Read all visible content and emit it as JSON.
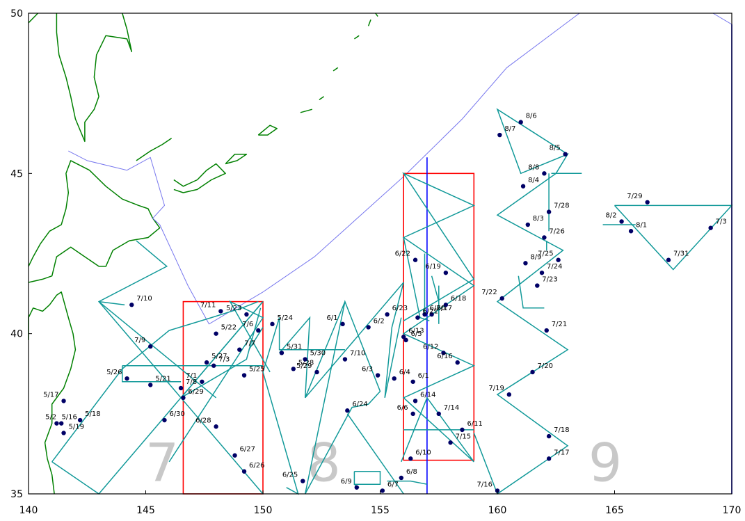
{
  "axes": {
    "x_ticks": [
      "140",
      "145",
      "150",
      "155",
      "160",
      "165",
      "170"
    ],
    "y_ticks": [
      "35",
      "40",
      "45",
      "50"
    ],
    "xlim": [
      140,
      170
    ],
    "ylim": [
      35,
      50
    ]
  },
  "colors": {
    "coast": "#008000",
    "boundary": "#7777ee",
    "track": "#119999",
    "station": "#000066",
    "box": "#ff0000",
    "meridian": "#0000ff",
    "area_number": "#c8c8c8"
  },
  "area_numbers": [
    {
      "text": "7",
      "lon": 145.7,
      "lat": 35.4
    },
    {
      "text": "8",
      "lon": 152.6,
      "lat": 35.4
    },
    {
      "text": "9",
      "lon": 164.6,
      "lat": 35.4
    }
  ],
  "boxes": [
    {
      "lon": [
        146.6,
        150.0
      ],
      "lat": [
        35.0,
        41.0
      ]
    },
    {
      "lon": [
        156.0,
        159.0
      ],
      "lat": [
        36.05,
        45.0
      ]
    }
  ],
  "meridians": [
    {
      "lon": 157.0,
      "lat": [
        35.0,
        45.5
      ]
    },
    {
      "lon": 170.0,
      "lat": [
        35.0,
        49.65
      ]
    }
  ],
  "boundary_lines": [
    [
      [
        141.7,
        45.7
      ],
      [
        142.5,
        45.4
      ],
      [
        144.2,
        45.1
      ],
      [
        145.2,
        45.5
      ],
      [
        145.8,
        44.0
      ],
      [
        145.3,
        43.6
      ],
      [
        145.6,
        43.4
      ]
    ],
    [
      [
        145.6,
        43.4
      ],
      [
        146.8,
        41.5
      ],
      [
        147.7,
        40.3
      ],
      [
        150.0,
        41.3
      ],
      [
        152.2,
        42.4
      ],
      [
        156.0,
        44.9
      ],
      [
        158.5,
        46.7
      ],
      [
        160.4,
        48.3
      ],
      [
        163.5,
        50.0
      ]
    ],
    [
      [
        169.2,
        50.0
      ],
      [
        170.0,
        49.65
      ]
    ]
  ],
  "tracks": [
    [
      [
        141.0,
        36.0
      ],
      [
        144.0,
        38.9
      ],
      [
        146.0,
        40.1
      ],
      [
        147.8,
        40.5
      ],
      [
        149.1,
        40.8
      ],
      [
        149.8,
        41.0
      ]
    ],
    [
      [
        141.0,
        36.0
      ],
      [
        143.0,
        35.0
      ],
      [
        150.0,
        41.0
      ],
      [
        146.5,
        38.0
      ],
      [
        143.0,
        41.0
      ],
      [
        145.9,
        42.1
      ],
      [
        144.6,
        42.9
      ]
    ],
    [
      [
        143.0,
        41.0
      ],
      [
        148.0,
        38.0
      ]
    ],
    [
      [
        144.0,
        39.0
      ],
      [
        150.0,
        39.0
      ]
    ],
    [
      [
        144.0,
        39.0
      ],
      [
        144.0,
        38.5
      ],
      [
        146.5,
        38.5
      ]
    ],
    [
      [
        146.5,
        38.0
      ],
      [
        150.0,
        35.0
      ]
    ],
    [
      [
        143.0,
        41.0
      ],
      [
        144.1,
        40.9
      ]
    ],
    [
      [
        146.0,
        36.0
      ],
      [
        150.0,
        40.5
      ],
      [
        148.6,
        41.0
      ],
      [
        150.3,
        38.8
      ]
    ],
    [
      [
        146.5,
        38.0
      ],
      [
        149.3,
        39.2
      ],
      [
        149.9,
        40.8
      ]
    ],
    [
      [
        149.4,
        39.5
      ],
      [
        150.0,
        40.2
      ]
    ],
    [
      [
        146.5,
        38.0
      ],
      [
        150.0,
        41.0
      ]
    ],
    [
      [
        150.0,
        38.8
      ],
      [
        151.5,
        35.0
      ],
      [
        151.0,
        35.2
      ]
    ],
    [
      [
        150.0,
        38.8
      ],
      [
        150.7,
        40.5
      ],
      [
        150.7,
        39.5
      ],
      [
        153.5,
        39.5
      ]
    ],
    [
      [
        150.7,
        39.4
      ],
      [
        152.0,
        40.5
      ],
      [
        151.8,
        38.0
      ],
      [
        153.5,
        41.0
      ]
    ],
    [
      [
        151.8,
        38.0
      ],
      [
        156.0,
        41.6
      ],
      [
        155.5,
        40.2
      ],
      [
        155.2,
        38.0
      ],
      [
        155.9,
        40.5
      ]
    ],
    [
      [
        151.8,
        35.0
      ],
      [
        153.5,
        41.0
      ],
      [
        155.0,
        38.2
      ],
      [
        154.5,
        37.8
      ],
      [
        153.8,
        37.7
      ],
      [
        151.8,
        35.0
      ]
    ],
    [
      [
        153.6,
        37.5
      ],
      [
        156.0,
        35.0
      ]
    ],
    [
      [
        153.9,
        35.7
      ],
      [
        155.0,
        35.7
      ],
      [
        155.0,
        35.3
      ],
      [
        153.9,
        35.3
      ],
      [
        153.9,
        35.7
      ]
    ],
    [
      [
        153.9,
        35.3
      ],
      [
        154.1,
        35.2
      ]
    ],
    [
      [
        155.3,
        35.4
      ],
      [
        156.3,
        35.4
      ],
      [
        157.0,
        35.3
      ]
    ],
    [
      [
        155.9,
        36.0
      ],
      [
        157.0,
        38.0
      ],
      [
        159.0,
        36.0
      ],
      [
        156.0,
        38.0
      ],
      [
        159.0,
        39.0
      ],
      [
        156.0,
        40.0
      ],
      [
        159.0,
        41.5
      ],
      [
        156.0,
        43.0
      ],
      [
        159.0,
        44.0
      ],
      [
        156.0,
        45.0
      ],
      [
        159.0,
        41.7
      ],
      [
        156.0,
        40.4
      ]
    ],
    [
      [
        156.0,
        37.0
      ],
      [
        159.0,
        37.0
      ]
    ],
    [
      [
        156.0,
        43.0
      ],
      [
        156.7,
        40.5
      ],
      [
        157.1,
        40.4
      ]
    ],
    [
      [
        156.9,
        42.5
      ],
      [
        156.9,
        40.6
      ]
    ],
    [
      [
        157.2,
        41.8
      ],
      [
        157.5,
        41.0
      ]
    ],
    [
      [
        157.5,
        41.5
      ],
      [
        157.5,
        40.3
      ]
    ],
    [
      [
        159.0,
        36.9
      ],
      [
        160.0,
        35.0
      ],
      [
        163.0,
        36.5
      ],
      [
        160.0,
        38.1
      ],
      [
        163.0,
        39.5
      ],
      [
        160.0,
        41.0
      ],
      [
        162.8,
        42.6
      ],
      [
        160.0,
        43.7
      ],
      [
        162.5,
        45.0
      ],
      [
        163.0,
        45.6
      ],
      [
        161.0,
        45.0
      ],
      [
        160.0,
        47.0
      ],
      [
        163.0,
        45.6
      ]
    ],
    [
      [
        162.2,
        45.0
      ],
      [
        162.2,
        43.2
      ]
    ],
    [
      [
        162.3,
        45.0
      ],
      [
        163.6,
        45.0
      ]
    ],
    [
      [
        160.9,
        41.8
      ],
      [
        161.1,
        40.8
      ],
      [
        162.0,
        40.8
      ]
    ],
    [
      [
        162.1,
        42.6
      ],
      [
        162.1,
        42.9
      ]
    ],
    [
      [
        165.0,
        44.0
      ],
      [
        170.0,
        44.0
      ],
      [
        167.5,
        42.0
      ],
      [
        165.0,
        44.0
      ]
    ],
    [
      [
        164.5,
        43.4
      ],
      [
        165.9,
        43.4
      ]
    ]
  ],
  "stations": [
    {
      "lon": 141.2,
      "lat": 37.2,
      "label": "5/16"
    },
    {
      "lon": 141.5,
      "lat": 37.9,
      "label": "5/17"
    },
    {
      "lon": 142.2,
      "lat": 37.3,
      "label": "5/18"
    },
    {
      "lon": 141.5,
      "lat": 36.9,
      "label": "5/19"
    },
    {
      "lon": 141.4,
      "lat": 37.2,
      "label": "5/2"
    },
    {
      "lon": 145.2,
      "lat": 38.4,
      "label": "5/21"
    },
    {
      "lon": 148.0,
      "lat": 40.0,
      "label": "5/22"
    },
    {
      "lon": 149.3,
      "lat": 40.6,
      "label": "5/23"
    },
    {
      "lon": 150.4,
      "lat": 40.3,
      "label": "5/24"
    },
    {
      "lon": 149.2,
      "lat": 38.7,
      "label": "5/25"
    },
    {
      "lon": 144.2,
      "lat": 38.6,
      "label": "5/26"
    },
    {
      "lon": 147.6,
      "lat": 39.1,
      "label": "5/27"
    },
    {
      "lon": 151.3,
      "lat": 38.9,
      "label": "5/28"
    },
    {
      "lon": 152.3,
      "lat": 38.8,
      "label": "5/29"
    },
    {
      "lon": 151.8,
      "lat": 39.2,
      "label": "5/30"
    },
    {
      "lon": 150.8,
      "lat": 39.4,
      "label": "5/31"
    },
    {
      "lon": 153.4,
      "lat": 40.3,
      "label": "6/1"
    },
    {
      "lon": 156.4,
      "lat": 38.5,
      "label": "6/1"
    },
    {
      "lon": 154.5,
      "lat": 40.2,
      "label": "6/2"
    },
    {
      "lon": 154.9,
      "lat": 38.7,
      "label": "6/3"
    },
    {
      "lon": 155.6,
      "lat": 38.6,
      "label": "6/4"
    },
    {
      "lon": 156.1,
      "lat": 39.8,
      "label": "6/5"
    },
    {
      "lon": 156.4,
      "lat": 37.5,
      "label": "6/6"
    },
    {
      "lon": 155.1,
      "lat": 35.1,
      "label": "6/7"
    },
    {
      "lon": 155.9,
      "lat": 35.5,
      "label": "6/8"
    },
    {
      "lon": 154.0,
      "lat": 35.2,
      "label": "6/9"
    },
    {
      "lon": 156.3,
      "lat": 36.1,
      "label": "6/10"
    },
    {
      "lon": 158.5,
      "lat": 37.0,
      "label": "6/11"
    },
    {
      "lon": 157.7,
      "lat": 39.4,
      "label": "6/12"
    },
    {
      "lon": 156.0,
      "lat": 39.9,
      "label": "6/13"
    },
    {
      "lon": 156.5,
      "lat": 37.9,
      "label": "6/14"
    },
    {
      "lon": 158.3,
      "lat": 39.1,
      "label": "6/16"
    },
    {
      "lon": 157.2,
      "lat": 40.6,
      "label": "6/17"
    },
    {
      "lon": 157.8,
      "lat": 40.9,
      "label": "6/18"
    },
    {
      "lon": 157.8,
      "lat": 41.9,
      "label": "6/19"
    },
    {
      "lon": 156.9,
      "lat": 40.6,
      "label": "6/20"
    },
    {
      "lon": 156.6,
      "lat": 40.5,
      "label": "6/21"
    },
    {
      "lon": 156.5,
      "lat": 42.3,
      "label": "6/22"
    },
    {
      "lon": 155.3,
      "lat": 40.6,
      "label": "6/23"
    },
    {
      "lon": 153.6,
      "lat": 37.6,
      "label": "6/24"
    },
    {
      "lon": 151.7,
      "lat": 35.4,
      "label": "6/25"
    },
    {
      "lon": 149.2,
      "lat": 35.7,
      "label": "6/26"
    },
    {
      "lon": 148.8,
      "lat": 36.2,
      "label": "6/27"
    },
    {
      "lon": 148.0,
      "lat": 37.1,
      "label": "6/28"
    },
    {
      "lon": 146.6,
      "lat": 38.0,
      "label": "6/29"
    },
    {
      "lon": 145.8,
      "lat": 37.3,
      "label": "6/30"
    },
    {
      "lon": 147.4,
      "lat": 38.5,
      "label": "7/1"
    },
    {
      "lon": 147.9,
      "lat": 39.0,
      "label": "7/3"
    },
    {
      "lon": 169.1,
      "lat": 43.3,
      "label": "7/3"
    },
    {
      "lon": 149.8,
      "lat": 40.1,
      "label": "7/6"
    },
    {
      "lon": 149.0,
      "lat": 39.5,
      "label": "7/7"
    },
    {
      "lon": 146.5,
      "lat": 38.3,
      "label": "7/8"
    },
    {
      "lon": 145.2,
      "lat": 39.6,
      "label": "7/9"
    },
    {
      "lon": 144.4,
      "lat": 40.9,
      "label": "7/10"
    },
    {
      "lon": 153.5,
      "lat": 39.2,
      "label": "7/10"
    },
    {
      "lon": 148.2,
      "lat": 40.7,
      "label": "7/11"
    },
    {
      "lon": 157.5,
      "lat": 37.5,
      "label": "7/14"
    },
    {
      "lon": 158.0,
      "lat": 36.6,
      "label": "7/15"
    },
    {
      "lon": 160.0,
      "lat": 35.1,
      "label": "7/16"
    },
    {
      "lon": 162.2,
      "lat": 36.1,
      "label": "7/17"
    },
    {
      "lon": 162.2,
      "lat": 36.8,
      "label": "7/18"
    },
    {
      "lon": 160.5,
      "lat": 38.1,
      "label": "7/19"
    },
    {
      "lon": 161.5,
      "lat": 38.8,
      "label": "7/20"
    },
    {
      "lon": 162.1,
      "lat": 40.1,
      "label": "7/21"
    },
    {
      "lon": 160.2,
      "lat": 41.1,
      "label": "7/22"
    },
    {
      "lon": 161.7,
      "lat": 41.5,
      "label": "7/23"
    },
    {
      "lon": 161.9,
      "lat": 41.9,
      "label": "7/24"
    },
    {
      "lon": 162.6,
      "lat": 42.3,
      "label": "7/25"
    },
    {
      "lon": 162.0,
      "lat": 43.0,
      "label": "7/26"
    },
    {
      "lon": 162.2,
      "lat": 43.8,
      "label": "7/28"
    },
    {
      "lon": 166.4,
      "lat": 44.1,
      "label": "7/29"
    },
    {
      "lon": 167.3,
      "lat": 42.3,
      "label": "7/31"
    },
    {
      "lon": 165.7,
      "lat": 43.2,
      "label": "8/1"
    },
    {
      "lon": 165.3,
      "lat": 43.5,
      "label": "8/2"
    },
    {
      "lon": 161.3,
      "lat": 43.4,
      "label": "8/3"
    },
    {
      "lon": 161.1,
      "lat": 44.6,
      "label": "8/4"
    },
    {
      "lon": 162.9,
      "lat": 45.6,
      "label": "8/5"
    },
    {
      "lon": 161.0,
      "lat": 46.6,
      "label": "8/6"
    },
    {
      "lon": 160.1,
      "lat": 46.2,
      "label": "8/7"
    },
    {
      "lon": 162.0,
      "lat": 45.0,
      "label": "8/8"
    },
    {
      "lon": 161.2,
      "lat": 42.2,
      "label": "8/9"
    }
  ],
  "coastlines": [
    [
      [
        141.1,
        35.0
      ],
      [
        141.0,
        35.6
      ],
      [
        140.8,
        36.1
      ],
      [
        140.7,
        36.6
      ],
      [
        141.0,
        37.2
      ],
      [
        141.0,
        37.8
      ],
      [
        141.5,
        38.3
      ],
      [
        141.8,
        38.9
      ],
      [
        142.0,
        39.5
      ],
      [
        141.9,
        40.0
      ],
      [
        141.7,
        40.5
      ],
      [
        141.4,
        41.3
      ],
      [
        141.2,
        41.2
      ],
      [
        140.9,
        40.9
      ],
      [
        140.6,
        40.7
      ],
      [
        140.2,
        40.8
      ],
      [
        140.0,
        40.5
      ],
      [
        140.0,
        39.8
      ]
    ],
    [
      [
        140.0,
        41.6
      ],
      [
        140.6,
        41.7
      ],
      [
        141.0,
        41.8
      ],
      [
        141.2,
        42.4
      ],
      [
        141.8,
        42.7
      ],
      [
        142.4,
        42.4
      ],
      [
        143.0,
        42.1
      ],
      [
        143.3,
        42.1
      ],
      [
        143.6,
        42.6
      ],
      [
        144.3,
        42.9
      ],
      [
        145.1,
        43.0
      ],
      [
        145.6,
        43.3
      ],
      [
        145.3,
        43.6
      ],
      [
        145.1,
        43.9
      ],
      [
        144.7,
        44.0
      ],
      [
        144.0,
        44.2
      ],
      [
        143.3,
        44.6
      ],
      [
        142.6,
        45.1
      ],
      [
        141.8,
        45.4
      ],
      [
        141.6,
        45.0
      ],
      [
        141.7,
        44.4
      ],
      [
        141.6,
        43.9
      ],
      [
        141.4,
        43.4
      ],
      [
        140.9,
        43.2
      ],
      [
        140.5,
        42.8
      ],
      [
        140.2,
        42.4
      ],
      [
        140.0,
        42.1
      ]
    ],
    [
      [
        140.0,
        49.7
      ],
      [
        140.4,
        50.0
      ]
    ],
    [
      [
        141.2,
        50.0
      ],
      [
        141.2,
        49.4
      ],
      [
        141.3,
        48.7
      ],
      [
        141.6,
        48.0
      ],
      [
        141.8,
        47.4
      ],
      [
        142.0,
        46.7
      ],
      [
        142.4,
        46.0
      ],
      [
        142.4,
        46.6
      ],
      [
        142.8,
        47.0
      ],
      [
        143.0,
        47.4
      ],
      [
        142.8,
        48.0
      ],
      [
        142.9,
        48.7
      ],
      [
        143.3,
        49.3
      ],
      [
        144.2,
        49.2
      ],
      [
        144.4,
        48.8
      ],
      [
        144.2,
        49.5
      ],
      [
        144.0,
        50.0
      ]
    ],
    [
      [
        144.6,
        45.4
      ],
      [
        145.2,
        45.7
      ],
      [
        145.7,
        45.9
      ],
      [
        146.1,
        46.1
      ]
    ],
    [
      [
        146.2,
        44.8
      ],
      [
        146.6,
        44.6
      ],
      [
        147.2,
        44.8
      ],
      [
        147.6,
        45.1
      ],
      [
        148.0,
        45.3
      ],
      [
        148.4,
        45.0
      ],
      [
        147.8,
        44.8
      ],
      [
        147.2,
        44.5
      ],
      [
        146.6,
        44.4
      ],
      [
        146.2,
        44.5
      ]
    ],
    [
      [
        148.4,
        45.3
      ],
      [
        148.9,
        45.4
      ],
      [
        149.3,
        45.6
      ],
      [
        148.8,
        45.6
      ],
      [
        148.4,
        45.3
      ]
    ],
    [
      [
        149.8,
        46.2
      ],
      [
        150.3,
        46.5
      ],
      [
        150.6,
        46.4
      ],
      [
        150.2,
        46.2
      ],
      [
        149.8,
        46.2
      ]
    ],
    [
      [
        151.6,
        46.9
      ],
      [
        152.1,
        47.0
      ]
    ],
    [
      [
        152.4,
        47.3
      ],
      [
        152.6,
        47.4
      ]
    ],
    [
      [
        153.0,
        48.2
      ],
      [
        153.2,
        48.3
      ]
    ],
    [
      [
        153.9,
        49.2
      ],
      [
        154.1,
        49.3
      ]
    ],
    [
      [
        154.5,
        49.6
      ],
      [
        154.6,
        49.8
      ]
    ],
    [
      [
        154.8,
        50.0
      ],
      [
        154.9,
        49.9
      ]
    ]
  ]
}
